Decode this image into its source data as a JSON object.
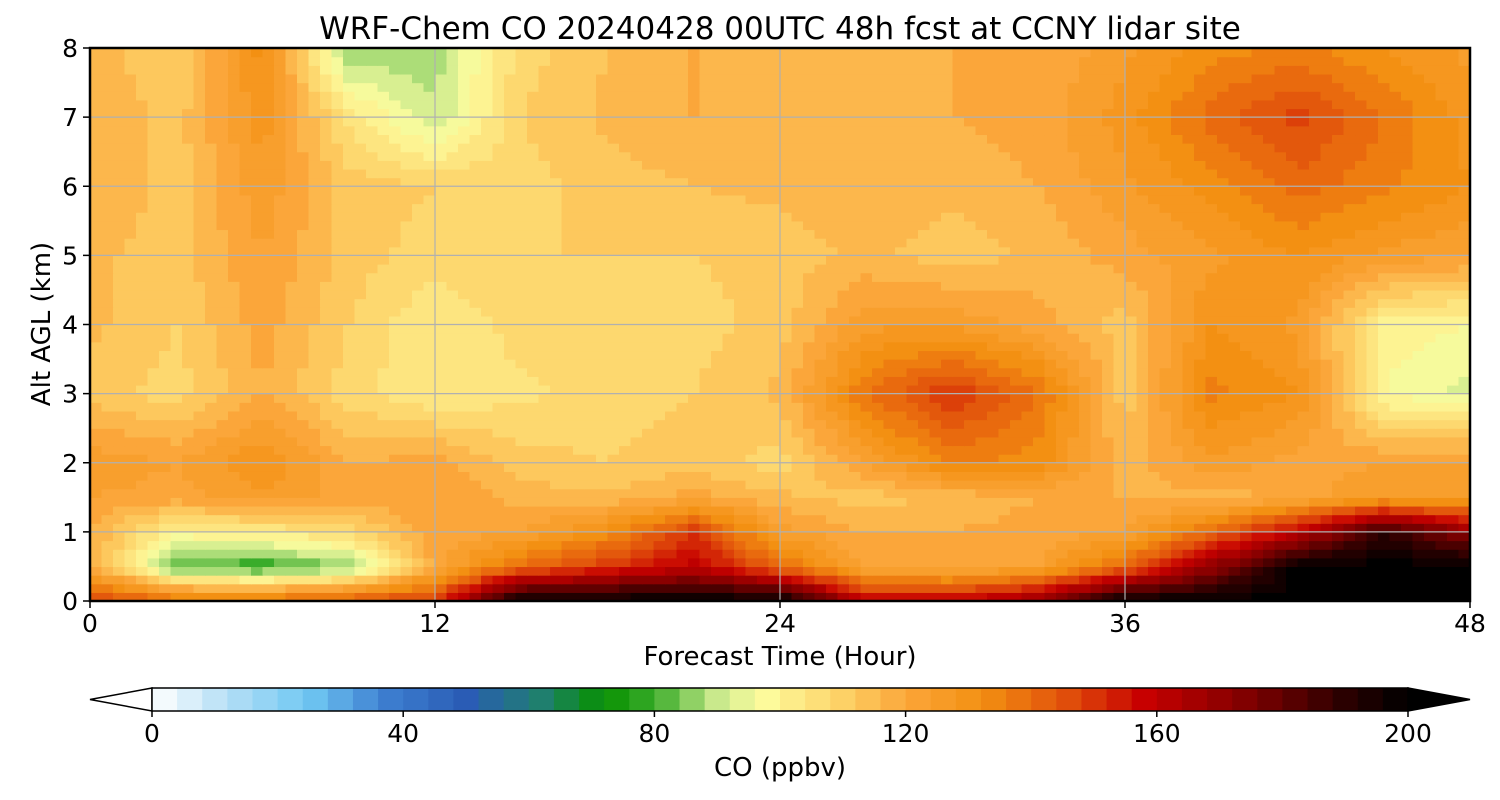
{
  "chart_data": {
    "type": "heatmap",
    "title": "WRF-Chem CO  20240428 00UTC 48h fcst at CCNY lidar site",
    "xlabel": "Forecast Time (Hour)",
    "ylabel": "Alt AGL (km)",
    "xlim": [
      0,
      48
    ],
    "ylim": [
      0,
      8
    ],
    "x_ticks": [
      "0",
      "12",
      "24",
      "36",
      "48"
    ],
    "y_ticks": [
      "0",
      "1",
      "2",
      "3",
      "4",
      "5",
      "6",
      "7",
      "8"
    ],
    "grid": true,
    "x": [
      0,
      3,
      6,
      9,
      12,
      15,
      18,
      21,
      24,
      27,
      30,
      33,
      36,
      39,
      42,
      45,
      48
    ],
    "y": [
      0,
      0.5,
      1,
      1.5,
      2,
      3,
      4,
      5,
      6,
      7,
      8
    ],
    "z": [
      [
        150,
        140,
        140,
        145,
        150,
        200,
        200,
        200,
        200,
        160,
        160,
        170,
        200,
        200,
        200,
        200,
        200
      ],
      [
        120,
        82,
        78,
        85,
        120,
        140,
        150,
        160,
        140,
        120,
        118,
        122,
        140,
        170,
        200,
        200,
        200
      ],
      [
        118,
        100,
        102,
        108,
        120,
        122,
        132,
        150,
        124,
        118,
        118,
        120,
        122,
        140,
        160,
        190,
        170
      ],
      [
        122,
        120,
        125,
        120,
        122,
        116,
        115,
        120,
        115,
        112,
        115,
        118,
        118,
        115,
        120,
        126,
        125
      ],
      [
        125,
        122,
        130,
        118,
        120,
        112,
        110,
        112,
        108,
        122,
        135,
        132,
        115,
        125,
        120,
        122,
        124
      ],
      [
        112,
        108,
        118,
        108,
        102,
        105,
        108,
        110,
        115,
        138,
        150,
        138,
        112,
        135,
        130,
        98,
        92
      ],
      [
        115,
        110,
        120,
        110,
        102,
        108,
        110,
        108,
        112,
        125,
        125,
        120,
        112,
        130,
        125,
        100,
        98
      ],
      [
        115,
        112,
        122,
        112,
        108,
        110,
        110,
        110,
        112,
        115,
        112,
        115,
        120,
        125,
        130,
        125,
        122
      ],
      [
        118,
        112,
        125,
        112,
        110,
        108,
        112,
        114,
        115,
        118,
        115,
        118,
        125,
        132,
        140,
        135,
        130
      ],
      [
        118,
        112,
        128,
        105,
        90,
        110,
        115,
        118,
        115,
        116,
        118,
        120,
        128,
        140,
        148,
        138,
        128
      ],
      [
        116,
        110,
        132,
        85,
        88,
        108,
        114,
        118,
        116,
        116,
        118,
        118,
        125,
        132,
        135,
        130,
        125
      ]
    ],
    "colorbar": {
      "label": "CO  (ppbv)",
      "range": [
        0,
        200
      ],
      "ticks": [
        "0",
        "40",
        "80",
        "120",
        "160",
        "200"
      ],
      "extend": "both",
      "stops": [
        [
          0,
          "#ffffff"
        ],
        [
          12,
          "#b5dff5"
        ],
        [
          25,
          "#6fc7f2"
        ],
        [
          37,
          "#3e7fd0"
        ],
        [
          50,
          "#2a5cb5"
        ],
        [
          62,
          "#1f7f6e"
        ],
        [
          72,
          "#079000"
        ],
        [
          80,
          "#3aac2a"
        ],
        [
          90,
          "#c9e98c"
        ],
        [
          97,
          "#fdfd9f"
        ],
        [
          110,
          "#fdd166"
        ],
        [
          120,
          "#fba63a"
        ],
        [
          132,
          "#f39012"
        ],
        [
          145,
          "#e2530c"
        ],
        [
          158,
          "#c70000"
        ],
        [
          175,
          "#7d0000"
        ],
        [
          190,
          "#2a0000"
        ],
        [
          200,
          "#000000"
        ]
      ]
    }
  }
}
